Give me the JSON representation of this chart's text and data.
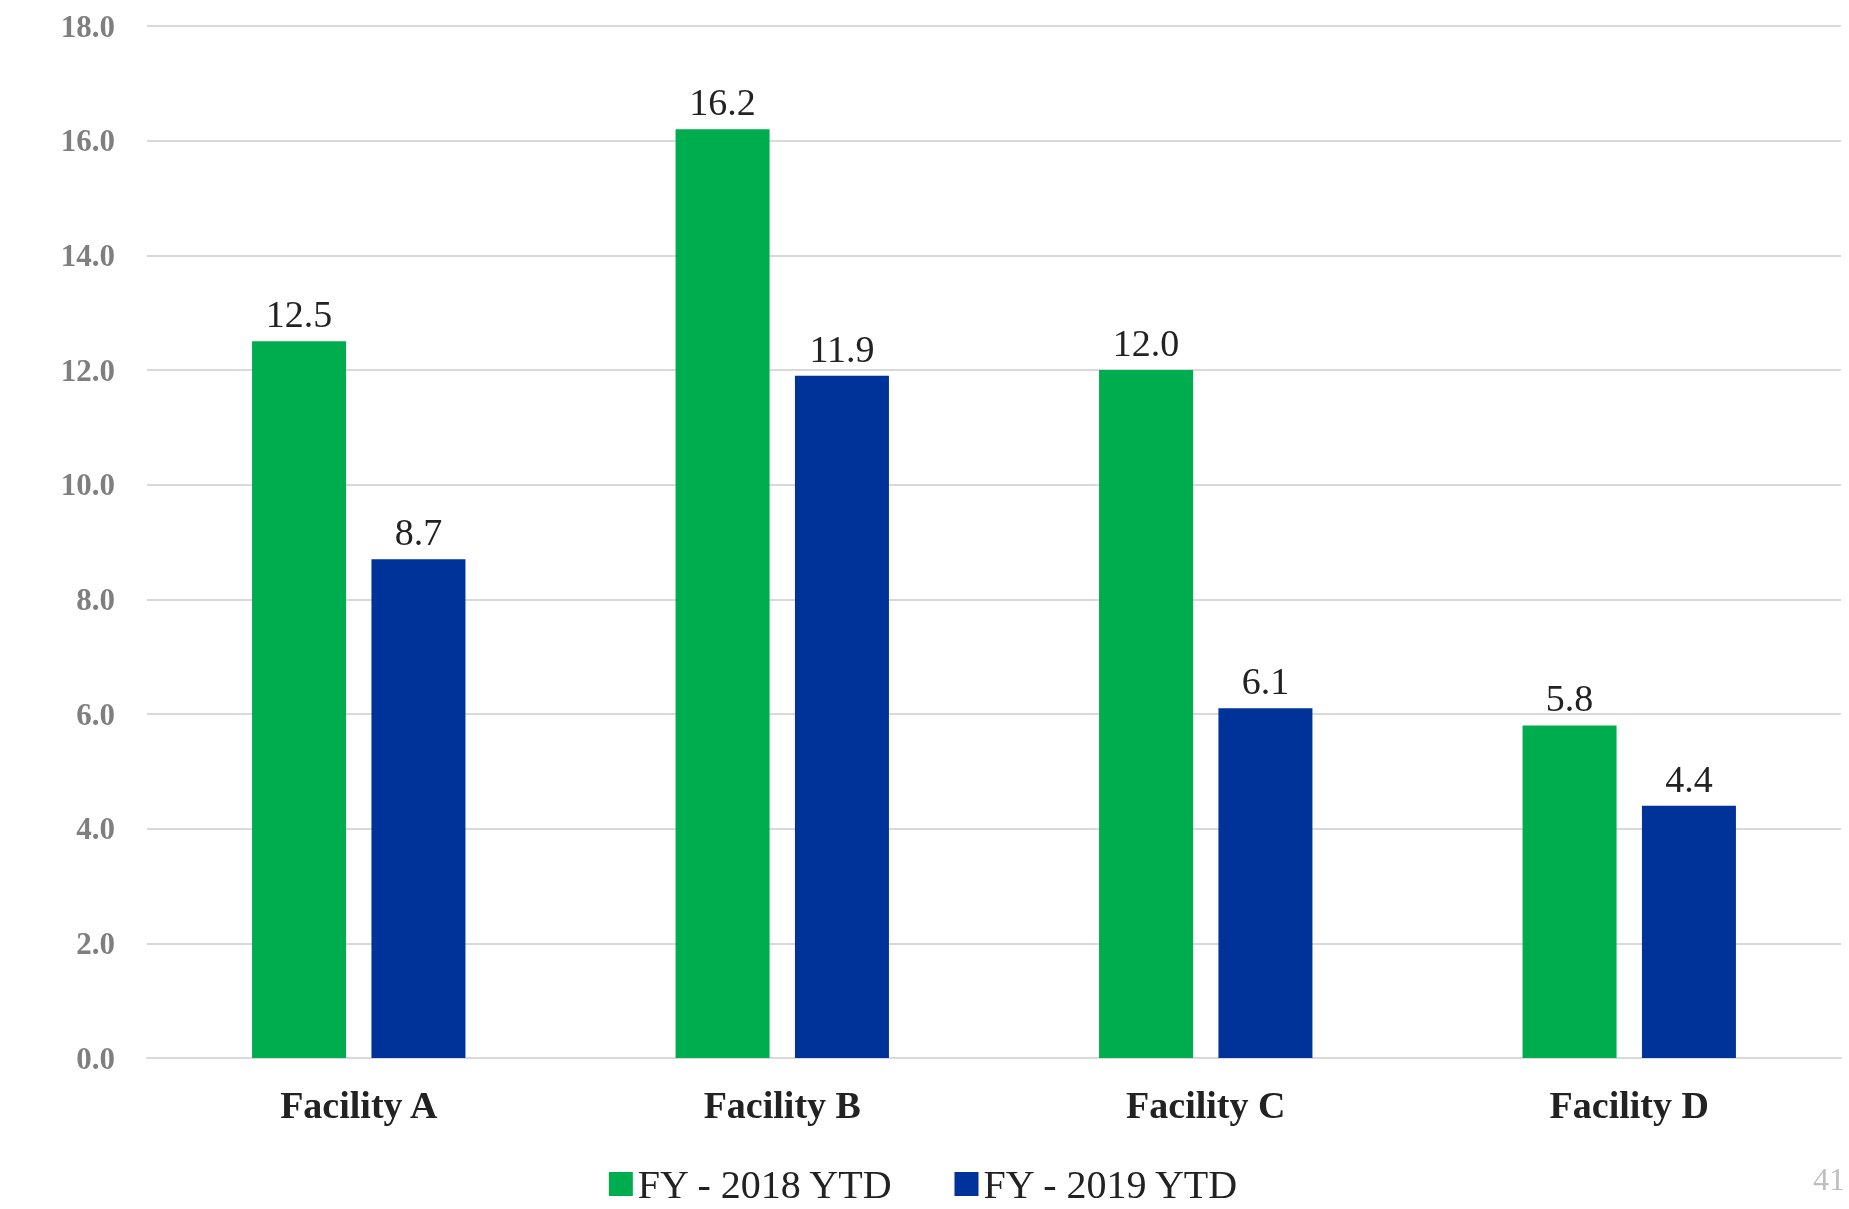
{
  "chart_data": {
    "type": "bar",
    "categories": [
      "Facility A",
      "Facility B",
      "Facility C",
      "Facility D"
    ],
    "series": [
      {
        "name": "FY - 2018 YTD",
        "color": "#00ad4e",
        "values": [
          12.5,
          16.2,
          12.0,
          5.8
        ]
      },
      {
        "name": "FY - 2019 YTD",
        "color": "#003399",
        "values": [
          8.7,
          11.9,
          6.1,
          4.4
        ]
      }
    ],
    "ylim": [
      0,
      18
    ],
    "yticks": [
      {
        "value": 0,
        "label": "0.0"
      },
      {
        "value": 2,
        "label": "2.0"
      },
      {
        "value": 4,
        "label": "4.0"
      },
      {
        "value": 6,
        "label": "6.0"
      },
      {
        "value": 8,
        "label": "8.0"
      },
      {
        "value": 10,
        "label": "10.0"
      },
      {
        "value": 12,
        "label": "12.0"
      },
      {
        "value": 14,
        "label": "14.0"
      },
      {
        "value": 16,
        "label": "16.0"
      },
      {
        "value": 18,
        "label": "18.0"
      }
    ],
    "value_labels": [
      [
        "12.5",
        "16.2",
        "12.0",
        "5.8"
      ],
      [
        "8.7",
        "11.9",
        "6.1",
        "4.4"
      ]
    ],
    "grid": "y",
    "legend": "bottom",
    "annotations": [
      "41"
    ]
  }
}
